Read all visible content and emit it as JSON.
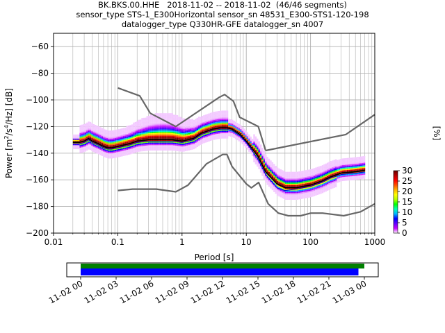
{
  "chart_data": {
    "type": "line",
    "title_lines": [
      "BK.BKS.00.HHE   2018-11-02 -- 2018-11-02  (46/46 segments)",
      "sensor_type STS-1_E300Horizontal sensor_sn 48531_E300-STS1-120-198",
      "datalogger_type Q330HR-GFE datalogger_sn 4007"
    ],
    "xlabel": "Period [s]",
    "ylabel_parts": [
      "Power [m",
      "2",
      "/s",
      "4",
      "/Hz] [dB]"
    ],
    "x_scale": "log",
    "xlim": [
      0.01,
      1000
    ],
    "ylim": [
      -200,
      -50
    ],
    "x_ticks": [
      0.01,
      0.1,
      1,
      10,
      100,
      1000
    ],
    "x_tick_labels": [
      "0.01",
      "0.1",
      "1",
      "10",
      "100",
      "1000"
    ],
    "y_ticks": [
      -200,
      -180,
      -160,
      -140,
      -120,
      -100,
      -80,
      -60
    ],
    "y_tick_labels": [
      "−200",
      "−180",
      "−160",
      "−140",
      "−120",
      "−100",
      "−80",
      "−60"
    ],
    "grid": true,
    "series": [
      {
        "kind": "noise-model",
        "color": "#666666",
        "x": [
          0.1,
          0.22,
          0.32,
          0.8,
          3.8,
          4.6,
          6.3,
          7.9,
          15.4,
          20
        ],
        "y": [
          -91,
          -97,
          -110,
          -120,
          -98,
          -96,
          -101,
          -113,
          -120,
          -138
        ]
      },
      {
        "kind": "noise-model",
        "color": "#666666",
        "x": [
          20,
          354.8,
          1000
        ],
        "y": [
          -138,
          -126,
          -111
        ]
      },
      {
        "kind": "noise-model",
        "color": "#666666",
        "x": [
          0.1,
          0.17,
          0.4,
          0.8,
          1.24,
          2.4,
          4.3,
          5,
          6,
          10,
          12,
          15.6,
          21.9,
          31.6,
          45,
          70,
          101,
          154,
          328,
          600,
          1000
        ],
        "y": [
          -168,
          -167,
          -167,
          -169,
          -164,
          -148,
          -141,
          -141,
          -150,
          -163,
          -166,
          -162,
          -178,
          -185,
          -187,
          -187,
          -185,
          -185,
          -187,
          -184,
          -178
        ]
      },
      {
        "kind": "mean",
        "color": "#000000",
        "x": [
          0.02,
          0.025,
          0.03,
          0.035,
          0.04,
          0.05,
          0.06,
          0.07,
          0.08,
          0.1,
          0.15,
          0.2,
          0.3,
          0.5,
          0.7,
          1,
          1.5,
          2,
          3,
          4,
          5,
          6,
          8,
          10,
          15,
          20,
          30,
          40,
          60,
          100,
          150,
          200,
          300,
          500,
          700
        ],
        "y": [
          -132,
          -132,
          -131,
          -129,
          -131,
          -133,
          -135,
          -136,
          -136,
          -135,
          -133,
          -131,
          -130,
          -130,
          -130,
          -131,
          -129,
          -125,
          -122,
          -121,
          -121,
          -122,
          -126,
          -131,
          -142,
          -154,
          -163,
          -166,
          -166,
          -164,
          -161,
          -158,
          -155,
          -154,
          -153
        ]
      },
      {
        "kind": "mode",
        "color": "#0000cc",
        "x": [
          0.02,
          0.025,
          0.03,
          0.035,
          0.04,
          0.05,
          0.06,
          0.07,
          0.08,
          0.1,
          0.15,
          0.2,
          0.3,
          0.5,
          0.7,
          1,
          1.5,
          2,
          3,
          4,
          5,
          6,
          8,
          10,
          15,
          20,
          30,
          40,
          60,
          100,
          150,
          200,
          300,
          500,
          700
        ],
        "y": [
          -133,
          -133,
          -132,
          -130,
          -132,
          -134,
          -136,
          -137,
          -137,
          -136,
          -134,
          -132,
          -131,
          -131,
          -131,
          -132,
          -130,
          -126,
          -123,
          -122,
          -122,
          -123,
          -127,
          -132,
          -144,
          -156,
          -166,
          -168,
          -167,
          -165,
          -162,
          -159,
          -156,
          -155,
          -154
        ]
      }
    ],
    "colorbar": {
      "label": "[%]",
      "min": 0,
      "max": 30,
      "ticks": [
        0,
        5,
        10,
        15,
        20,
        25,
        30
      ],
      "tick_labels": [
        "0",
        "5",
        "10",
        "15",
        "20",
        "25",
        "30"
      ],
      "colormap": [
        "#ffffff",
        "#c800ff",
        "#6400ff",
        "#0000ff",
        "#00b4ff",
        "#00ffb4",
        "#00ff00",
        "#b4ff00",
        "#ffff00",
        "#ffb400",
        "#ff5000",
        "#ff0000",
        "#b40000",
        "#640000"
      ]
    },
    "timeline": {
      "ticks": [
        "11-02 00",
        "11-02 03",
        "11-02 06",
        "11-02 09",
        "11-02 12",
        "11-02 15",
        "11-02 18",
        "11-02 21",
        "11-03 00"
      ],
      "data_availability": {
        "start_hour": 0,
        "end_hour": 24,
        "color": "#008000"
      },
      "segments": {
        "start_hour": 0,
        "end_hour": 23.5,
        "color": "#0000ff"
      }
    }
  }
}
